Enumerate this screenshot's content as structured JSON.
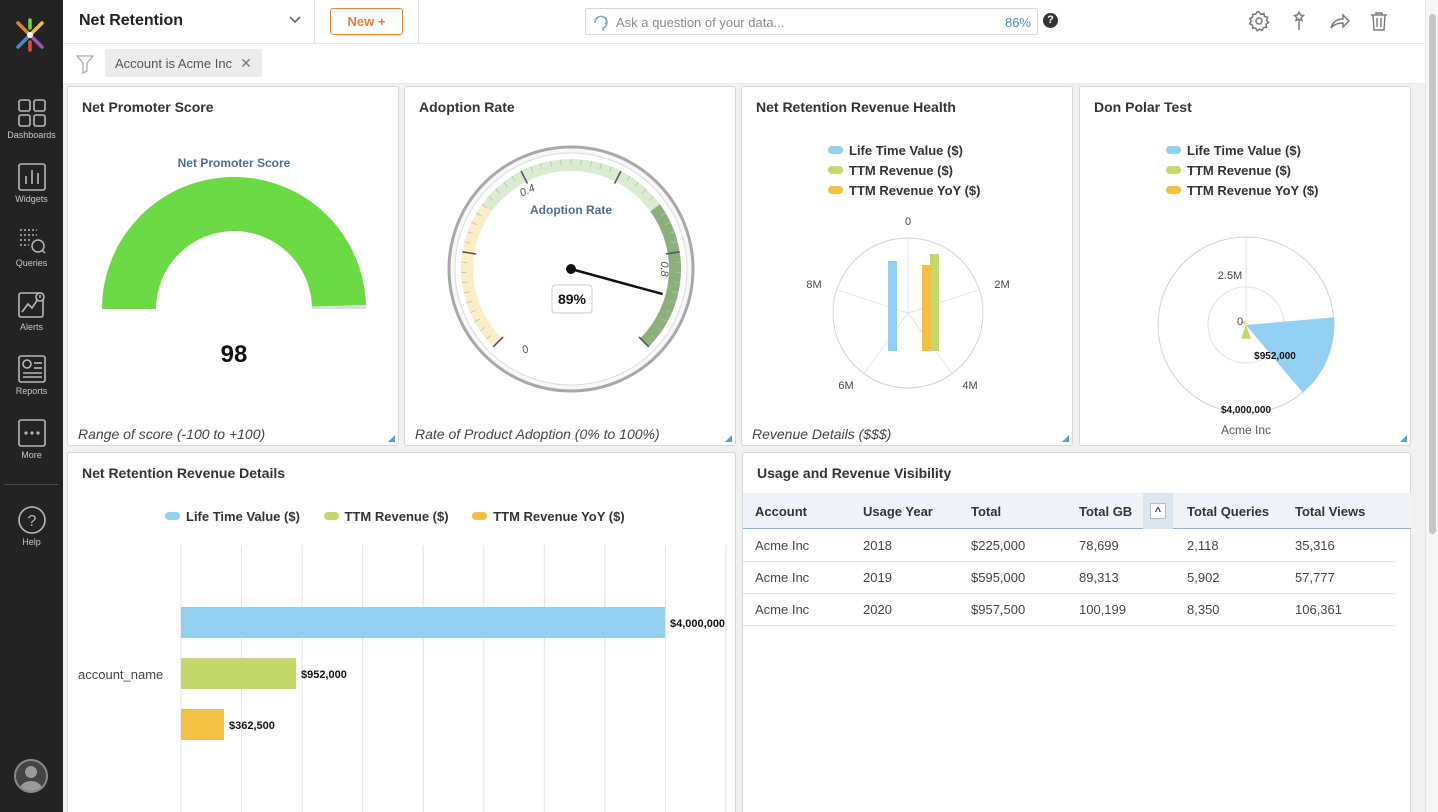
{
  "topbar": {
    "dashboard_title": "Net Retention",
    "new_button": "New +",
    "ask_placeholder": "Ask a question of your data...",
    "ask_confidence": "86%",
    "help": "?"
  },
  "filterbar": {
    "chip_label": "Account is Acme Inc",
    "chip_close": "✕"
  },
  "sidebar": {
    "items": [
      {
        "label": "Dashboards",
        "icon": "dashboards-icon"
      },
      {
        "label": "Widgets",
        "icon": "widgets-icon"
      },
      {
        "label": "Queries",
        "icon": "queries-icon"
      },
      {
        "label": "Alerts",
        "icon": "alerts-icon"
      },
      {
        "label": "Reports",
        "icon": "reports-icon"
      },
      {
        "label": "More",
        "icon": "more-icon"
      },
      {
        "label": "Help",
        "icon": "help-icon"
      }
    ]
  },
  "colors": {
    "accent_orange": "#e0813c",
    "ltv_blue": "#92cff0",
    "ttm_green": "#c4d86b",
    "yoy_yellow": "#f4c043",
    "nps_green": "#6ad944",
    "link_blue": "#4a8bc6"
  },
  "widgets": {
    "nps": {
      "title": "Net Promoter Score",
      "chart_title": "Net Promoter Score",
      "value": "98",
      "footer": "Range of score (-100 to +100)"
    },
    "adoption": {
      "title": "Adoption Rate",
      "chart_title": "Adoption Rate",
      "value_label": "89%",
      "tick_0": "0",
      "tick_04": "0.4",
      "tick_08": "0.8",
      "footer": "Rate of Product Adoption (0% to 100%)"
    },
    "health": {
      "title": "Net Retention Revenue Health",
      "footer": "Revenue Details ($$$)",
      "axis_labels": {
        "top": "0",
        "right": "2M",
        "bottom_right": "4M",
        "bottom_left": "6M",
        "left": "8M"
      }
    },
    "polar": {
      "title": "Don Polar Test",
      "ring_label": "2.5M",
      "center_label": "0",
      "value_label": "$952,000",
      "outer_label": "$4,000,000",
      "category": "Acme Inc"
    },
    "details": {
      "title": "Net Retention Revenue Details",
      "y_category": "account_name"
    },
    "usage": {
      "title": "Usage and Revenue Visibility",
      "sort_icon": "^",
      "columns": [
        "Account",
        "Usage Year",
        "Total",
        "Total GB",
        "Total Queries",
        "Total Views"
      ],
      "rows": [
        [
          "Acme Inc",
          "2018",
          "$225,000",
          "78,699",
          "2,118",
          "35,316"
        ],
        [
          "Acme Inc",
          "2019",
          "$595,000",
          "89,313",
          "5,902",
          "57,777"
        ],
        [
          "Acme Inc",
          "2020",
          "$957,500",
          "100,199",
          "8,350",
          "106,361"
        ]
      ]
    }
  },
  "legend": [
    "Life Time Value ($)",
    "TTM Revenue ($)",
    "TTM Revenue YoY ($)"
  ],
  "chart_data": [
    {
      "type": "gauge",
      "title": "Net Promoter Score",
      "value": 98,
      "range": [
        -100,
        100
      ]
    },
    {
      "type": "gauge",
      "title": "Adoption Rate",
      "value": 0.89,
      "range": [
        0,
        1
      ],
      "ticks": [
        "0",
        "0.4",
        "0.8"
      ]
    },
    {
      "type": "bar",
      "title": "Net Retention Revenue Health",
      "categories": [
        "account_name"
      ],
      "series": [
        {
          "name": "Life Time Value ($)",
          "values": [
            4000000
          ]
        },
        {
          "name": "TTM Revenue ($)",
          "values": [
            952000
          ]
        },
        {
          "name": "TTM Revenue YoY ($)",
          "values": [
            362500
          ]
        }
      ]
    },
    {
      "type": "bar",
      "title": "Don Polar Test",
      "categories": [
        "Acme Inc"
      ],
      "series": [
        {
          "name": "Life Time Value ($)",
          "values": [
            4000000
          ]
        },
        {
          "name": "TTM Revenue ($)",
          "values": [
            952000
          ]
        },
        {
          "name": "TTM Revenue YoY ($)",
          "values": [
            362500
          ]
        }
      ]
    },
    {
      "type": "bar",
      "title": "Net Retention Revenue Details",
      "categories": [
        "account_name"
      ],
      "series": [
        {
          "name": "Life Time Value ($)",
          "values": [
            4000000
          ],
          "label": "$4,000,000"
        },
        {
          "name": "TTM Revenue ($)",
          "values": [
            952000
          ],
          "label": "$952,000"
        },
        {
          "name": "TTM Revenue YoY ($)",
          "values": [
            362500
          ],
          "label": "$362,500"
        }
      ],
      "xlim": [
        0,
        4500000
      ],
      "grid": true,
      "legend": "top"
    }
  ]
}
